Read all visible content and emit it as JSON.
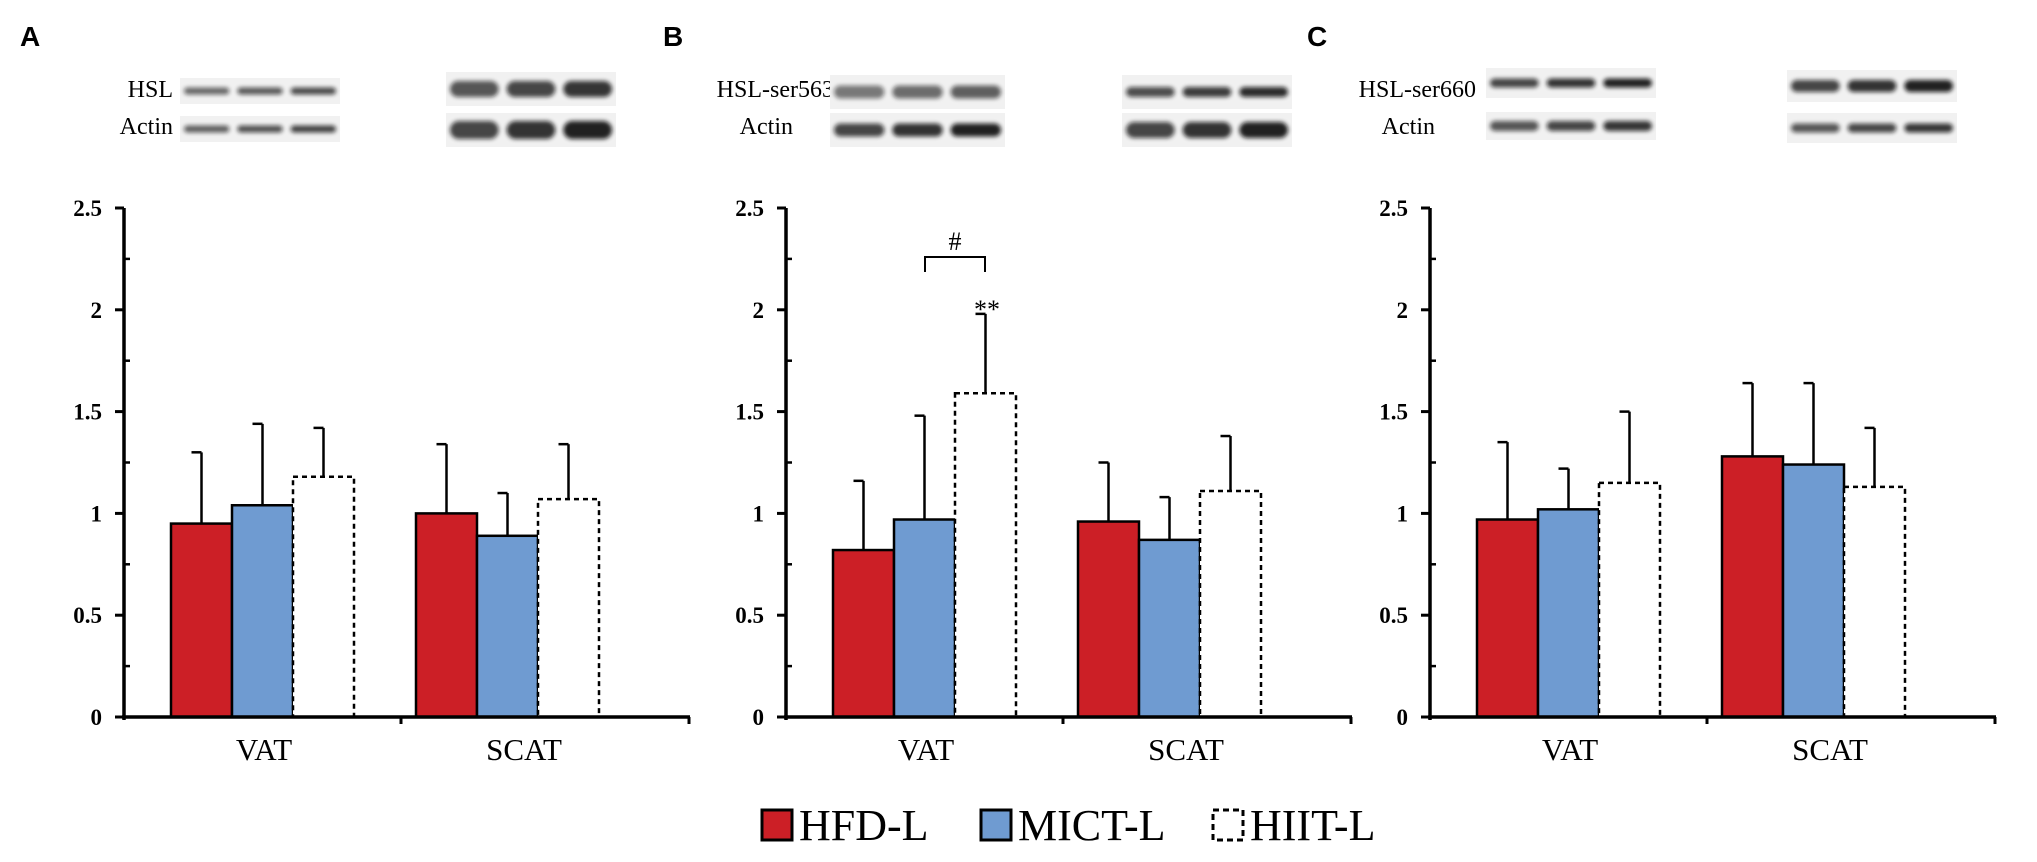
{
  "colors": {
    "HFD-L": "#cc1f26",
    "MICT-L": "#6f9bd1",
    "HIIT-L": "#ffffff",
    "axis": "#000000"
  },
  "legend": [
    {
      "label": "HFD-L",
      "style": "solid-red"
    },
    {
      "label": "MICT-L",
      "style": "solid-blue"
    },
    {
      "label": "HIIT-L",
      "style": "dotted-white"
    }
  ],
  "chart_data": [
    {
      "panel": "A",
      "type": "bar",
      "blots": [
        {
          "label": "HSL"
        },
        {
          "label": "Actin"
        }
      ],
      "categories": [
        "VAT",
        "SCAT"
      ],
      "ylim": [
        0,
        2.5
      ],
      "yticks": [
        "0",
        "0.5",
        "1",
        "1.5",
        "2",
        "2.5"
      ],
      "series": [
        {
          "name": "HFD-L",
          "values": [
            0.95,
            1.0
          ],
          "errors": [
            0.35,
            0.34
          ]
        },
        {
          "name": "MICT-L",
          "values": [
            1.04,
            0.89
          ],
          "errors": [
            0.4,
            0.21
          ]
        },
        {
          "name": "HIIT-L",
          "values": [
            1.18,
            1.07
          ],
          "errors": [
            0.24,
            0.27
          ]
        }
      ],
      "annotations": []
    },
    {
      "panel": "B",
      "type": "bar",
      "blots": [
        {
          "label": "HSL-ser563"
        },
        {
          "label": "Actin"
        }
      ],
      "categories": [
        "VAT",
        "SCAT"
      ],
      "ylim": [
        0,
        2.5
      ],
      "yticks": [
        "0",
        "0.5",
        "1",
        "1.5",
        "2",
        "2.5"
      ],
      "series": [
        {
          "name": "HFD-L",
          "values": [
            0.82,
            0.96
          ],
          "errors": [
            0.34,
            0.29
          ]
        },
        {
          "name": "MICT-L",
          "values": [
            0.97,
            0.87
          ],
          "errors": [
            0.51,
            0.21
          ]
        },
        {
          "name": "HIIT-L",
          "values": [
            1.59,
            1.11
          ],
          "errors": [
            0.39,
            0.27
          ]
        }
      ],
      "annotations": [
        {
          "text": "**"
        },
        {
          "text": "#"
        }
      ]
    },
    {
      "panel": "C",
      "type": "bar",
      "blots": [
        {
          "label": "HSL-ser660"
        },
        {
          "label": "Actin"
        }
      ],
      "categories": [
        "VAT",
        "SCAT"
      ],
      "ylim": [
        0,
        2.5
      ],
      "yticks": [
        "0",
        "0.5",
        "1",
        "1.5",
        "2",
        "2.5"
      ],
      "series": [
        {
          "name": "HFD-L",
          "values": [
            0.97,
            1.28
          ],
          "errors": [
            0.38,
            0.36
          ]
        },
        {
          "name": "MICT-L",
          "values": [
            1.02,
            1.24
          ],
          "errors": [
            0.2,
            0.4
          ]
        },
        {
          "name": "HIIT-L",
          "values": [
            1.15,
            1.13
          ],
          "errors": [
            0.35,
            0.29
          ]
        }
      ],
      "annotations": []
    }
  ]
}
